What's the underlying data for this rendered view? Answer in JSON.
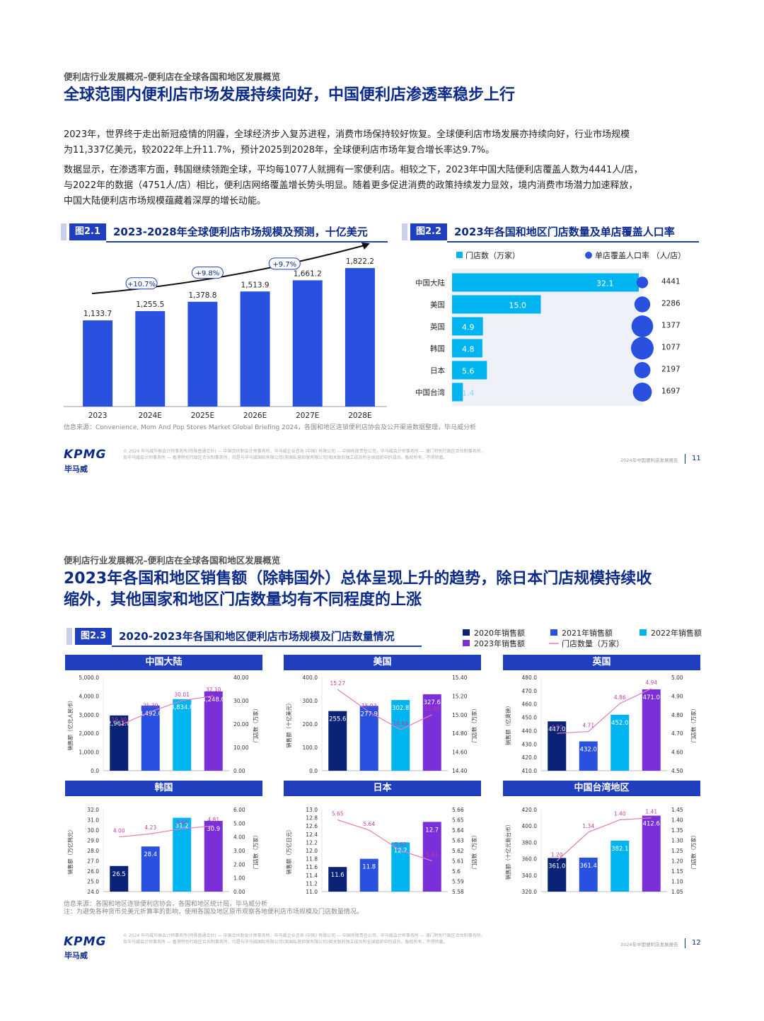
{
  "page1": {
    "breadcrumb": "便利店行业发展概况–便利店在全球各国和地区发展概览",
    "headline": "全球范围内便利店市场发展持续向好，中国便利店渗透率稳步上行",
    "para1_line1": "2023年，世界终于走出新冠疫情的阴霾，全球经济步入复苏进程，消费市场保持较好恢复。全球便利店市场发展亦持续向好，行业市场规模",
    "para1_line2": "为11,337亿美元，较2022年上升11.7%，预计2025到2028年，全球便利店市场年复合增长率达9.7%。",
    "para2_line1": "数据显示，在渗透率方面，韩国继续领跑全球，平均每1077人就拥有一家便利店。相较之下，2023年中国大陆便利店覆盖人数为4441人/店，",
    "para2_line2": "与2022年的数据（4751人/店）相比，便利店网络覆盖增长势头明显。随着更多促进消费的政策持续发力显效，境内消费市场潜力加速释放，",
    "para2_line3": "中国大陆便利店市场规模蕴藏着深厚的增长动能。",
    "source": "信息来源：Convenience, Mom And Pop Stores Market Global Briefing 2024，各国和地区连锁便利店协会及公开渠道数据整理，毕马威分析",
    "legal_line1": "© 2024 毕马威华振会计师事务所(特殊普通合伙) — 中国合伙制会计师事务所，毕马威企业咨询 (中国) 有限公司 — 中国有限责任公司，毕马威会计师事务所 — 澳门特别行政区合伙制事务所，",
    "legal_line2": "及毕马威会计师事务所 — 香港特别行政区合伙制事务所，均是与毕马威国际有限公司(英国私营担保有限公司)相关联的独立成员所全球组织中的成员。版权所有，不得转载。",
    "report_name": "2024年中国便利店发展报告",
    "page_number": "11"
  },
  "page2": {
    "breadcrumb": "便利店行业发展概况–便利店在全球各国和地区发展概览",
    "headline_line1": "2023年各国和地区销售额（除韩国外）总体呈现上升的趋势，除日本门店规模持续收",
    "headline_line2": "缩外，其他国家和地区门店数量均有不同程度的上涨",
    "source_line1": "信息来源：各国和地区连锁便利店协会，各国和地区统计局，毕马威分析",
    "source_line2": "注：为避免各种货币兑美元折算率的影响，使用各国及地区原币观察各地便利店市场规模及门店数量情况。",
    "legal_line1": "© 2024 毕马威华振会计师事务所(特殊普通合伙) — 中国合伙制会计师事务所，毕马威企业咨询 (中国) 有限公司 — 中国有限责任公司，毕马威会计师事务所 — 澳门特别行政区合伙制事务所，",
    "legal_line2": "及毕马威会计师事务所 — 香港特别行政区合伙制事务所，均是与毕马威国际有限公司(英国私营担保有限公司)相关联的独立成员所全球组织中的成员。版权所有，不得转载。",
    "report_name": "2024年中国便利店发展报告",
    "page_number": "12"
  },
  "logo": {
    "text": "KPMG",
    "cn": "毕马威"
  },
  "colors": {
    "navy": "#0b2a8a",
    "blue": "#1f3fbf",
    "bright_blue": "#2a50e0",
    "cyan": "#00b4ef",
    "purple": "#7a2fd8",
    "dark_navy": "#0a2377",
    "pink": "#e87ab8"
  },
  "chart_data": [
    {
      "id": "fig2.1",
      "type": "bar",
      "tag": "图2.1",
      "title": "2023-2028年全球便利店市场规模及预测，十亿美元",
      "categories": [
        "2023",
        "2024E",
        "2025E",
        "2026E",
        "2027E",
        "2028E"
      ],
      "values": [
        1133.7,
        1255.5,
        1378.8,
        1513.9,
        1661.2,
        1822.2
      ],
      "value_labels": [
        "1,133.7",
        "1,255.5",
        "1,378.8",
        "1,513.9",
        "1,661.2",
        "1,822.2"
      ],
      "growth_labels": [
        "+10.7%",
        "+9.8%",
        "+9.7%"
      ],
      "ylim": [
        0,
        2000
      ]
    },
    {
      "id": "fig2.2",
      "type": "bar",
      "tag": "图2.2",
      "title": "2023年各国和地区门店数量及单店覆盖人口率",
      "legend": [
        "门店数（万家）",
        "单店覆盖人口率 （人/店）"
      ],
      "categories": [
        "中国大陆",
        "美国",
        "英国",
        "韩国",
        "日本",
        "中国台湾"
      ],
      "stores": [
        32.1,
        15.0,
        4.9,
        4.8,
        5.6,
        1.4
      ],
      "store_labels": [
        "32.1",
        "15.0",
        "4.9",
        "4.8",
        "5.6",
        "1.4"
      ],
      "coverage": [
        4441,
        2286,
        1377,
        1077,
        2197,
        1697
      ],
      "coverage_labels": [
        "4441",
        "2286",
        "1377",
        "1077",
        "2197",
        "1697"
      ]
    },
    {
      "id": "fig2.3",
      "type": "bar",
      "tag": "图2.3",
      "title": "2020-2023年各国和地区便利店市场规模及门店数量情况",
      "legend": [
        "2020年销售额",
        "2021年销售额",
        "2022年销售额",
        "2023年销售额",
        "门店数量（万家）"
      ],
      "panels": [
        {
          "name": "中国大陆",
          "ylabel": "销售额（亿元人民币）",
          "y2label": "门店数（万家）",
          "ylim": [
            0,
            5000
          ],
          "yticks": [
            "0.0",
            "1,000.0",
            "2,000.0",
            "3,000.0",
            "4,000.0",
            "5,000.0"
          ],
          "y2lim": [
            0,
            40
          ],
          "y2ticks": [
            "0.00",
            "10.00",
            "20.00",
            "30.00",
            "40.00"
          ],
          "sales": [
            2961.0,
            3492.0,
            3834.0,
            4248.0
          ],
          "sales_labels": [
            "2,961.0",
            "3,492.0",
            "3,834.0",
            "4,248.0"
          ],
          "stores": [
            19.3,
            25.3,
            30.01,
            32.1
          ],
          "store_labels": [
            "19.30",
            "25.30",
            "30.01",
            "32.10"
          ]
        },
        {
          "name": "美国",
          "ylabel": "销售额（十亿美元）",
          "y2label": "门店数（万家）",
          "ylim": [
            0,
            400
          ],
          "yticks": [
            "0.0",
            "100.0",
            "200.0",
            "300.0",
            "400.0"
          ],
          "y2lim": [
            14.4,
            15.4
          ],
          "y2ticks": [
            "14.40",
            "14.60",
            "14.80",
            "15.00",
            "15.20",
            "15.40"
          ],
          "sales": [
            255.6,
            277.9,
            302.8,
            327.6
          ],
          "sales_labels": [
            "255.6",
            "277.9",
            "302.8",
            "327.6"
          ],
          "stores": [
            15.27,
            15.03,
            14.84,
            15.0
          ],
          "store_labels": [
            "15.27",
            "15.03",
            "14.84",
            "15.00"
          ]
        },
        {
          "name": "英国",
          "ylabel": "销售额（亿英镑）",
          "y2label": "门店数（万家）",
          "ylim": [
            410,
            480
          ],
          "yticks": [
            "410.0",
            "420.0",
            "430.0",
            "440.0",
            "450.0",
            "460.0",
            "470.0",
            "480.0"
          ],
          "y2lim": [
            4.5,
            5.0
          ],
          "y2ticks": [
            "4.50",
            "4.60",
            "4.70",
            "4.80",
            "4.90",
            "5.00"
          ],
          "sales": [
            447.0,
            432.0,
            452.0,
            471.0
          ],
          "sales_labels": [
            "447.0",
            "432.0",
            "452.0",
            "471.0"
          ],
          "stores": [
            4.7,
            4.71,
            4.86,
            4.94
          ],
          "store_labels": [
            "4.70",
            "4.71",
            "4.86",
            "4.94"
          ]
        },
        {
          "name": "韩国",
          "ylabel": "销售额（万亿韩元）",
          "y2label": "门店数（万家）",
          "ylim": [
            24,
            32
          ],
          "yticks": [
            "24.0",
            "25.0",
            "26.0",
            "27.0",
            "28.0",
            "29.0",
            "30.0",
            "31.0",
            "32.0"
          ],
          "y2lim": [
            0,
            6
          ],
          "y2ticks": [
            "0.00",
            "1.00",
            "2.00",
            "3.00",
            "4.00",
            "5.00",
            "6.00"
          ],
          "sales": [
            26.5,
            28.4,
            31.2,
            30.9
          ],
          "sales_labels": [
            "26.5",
            "28.4",
            "31.2",
            "30.9"
          ],
          "stores": [
            4.0,
            4.23,
            4.6,
            4.81
          ],
          "store_labels": [
            "4.00",
            "4.23",
            "4.60",
            "4.81"
          ]
        },
        {
          "name": "日本",
          "ylabel": "销售额（万亿日元）",
          "y2label": "门店数（万家）",
          "ylim": [
            11.0,
            13.0
          ],
          "yticks": [
            "11.0",
            "11.2",
            "11.4",
            "11.6",
            "11.8",
            "12.0",
            "12.2",
            "12.4",
            "12.6",
            "12.8",
            "13.0"
          ],
          "y2lim": [
            5.58,
            5.66
          ],
          "y2ticks": [
            "5.58",
            "5.59",
            "5.6",
            "5.61",
            "5.62",
            "5.63",
            "5.64",
            "5.65",
            "5.66"
          ],
          "sales": [
            11.6,
            11.8,
            12.2,
            12.7
          ],
          "sales_labels": [
            "11.6",
            "11.8",
            "12.2",
            "12.7"
          ],
          "stores": [
            5.65,
            5.64,
            5.62,
            5.61
          ],
          "store_labels": [
            "5.65",
            "5.64",
            "5.62",
            "5.61"
          ]
        },
        {
          "name": "中国台湾地区",
          "ylabel": "销售额（十亿元新台币）",
          "y2label": "门店数（万家）",
          "ylim": [
            320,
            420
          ],
          "yticks": [
            "320.0",
            "340.0",
            "360.0",
            "380.0",
            "400.0",
            "420.0"
          ],
          "y2lim": [
            1.05,
            1.45
          ],
          "y2ticks": [
            "1.05",
            "1.10",
            "1.15",
            "1.20",
            "1.25",
            "1.30",
            "1.35",
            "1.40",
            "1.45"
          ],
          "sales": [
            361.0,
            361.4,
            382.1,
            412.6
          ],
          "sales_labels": [
            "361.0",
            "361.4",
            "382.1",
            "412.6"
          ],
          "stores": [
            1.2,
            1.34,
            1.4,
            1.41
          ],
          "store_labels": [
            "1.20",
            "1.34",
            "1.40",
            "1.41"
          ]
        }
      ]
    }
  ]
}
